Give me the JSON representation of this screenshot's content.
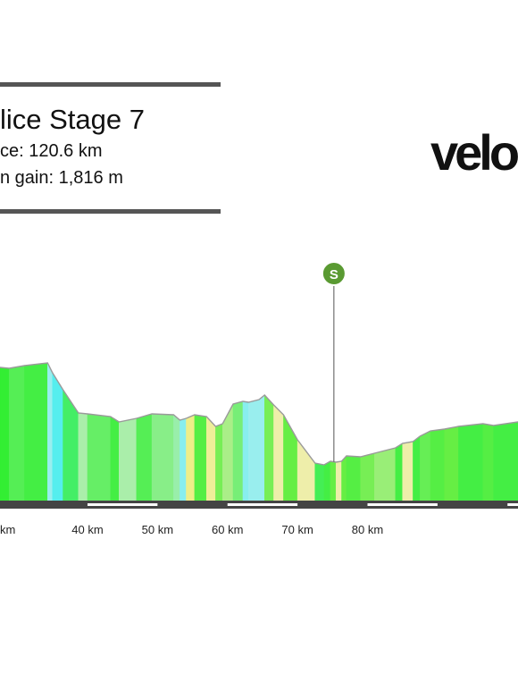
{
  "header": {
    "title": "lice Stage 7",
    "distance_text": "ce: 120.6 km",
    "gain_text": "n gain: 1,816 m"
  },
  "logo": {
    "text": "velo"
  },
  "chart_data": {
    "type": "area",
    "xlabel": "",
    "ylabel": "",
    "x_unit": "km",
    "xlim": [
      27.5,
      101.5
    ],
    "ylim": [
      0,
      160
    ],
    "x_ticks": [
      30,
      40,
      50,
      60,
      70,
      80
    ],
    "x_tick_labels": [
      "km",
      "40 km",
      "50 km",
      "60 km",
      "70 km",
      "80 km"
    ],
    "profile": [
      {
        "x": 27.5,
        "y": 149
      },
      {
        "x": 28.8,
        "y": 148
      },
      {
        "x": 31.0,
        "y": 151
      },
      {
        "x": 34.3,
        "y": 154
      },
      {
        "x": 35.0,
        "y": 143
      },
      {
        "x": 36.5,
        "y": 124
      },
      {
        "x": 38.7,
        "y": 98
      },
      {
        "x": 40.0,
        "y": 97
      },
      {
        "x": 43.3,
        "y": 94
      },
      {
        "x": 44.5,
        "y": 88
      },
      {
        "x": 47.0,
        "y": 92
      },
      {
        "x": 49.2,
        "y": 97
      },
      {
        "x": 52.3,
        "y": 96
      },
      {
        "x": 53.2,
        "y": 90
      },
      {
        "x": 54.1,
        "y": 92
      },
      {
        "x": 55.3,
        "y": 96
      },
      {
        "x": 57.0,
        "y": 94
      },
      {
        "x": 58.3,
        "y": 83
      },
      {
        "x": 59.3,
        "y": 86
      },
      {
        "x": 60.8,
        "y": 108
      },
      {
        "x": 62.2,
        "y": 111
      },
      {
        "x": 63.0,
        "y": 110
      },
      {
        "x": 64.5,
        "y": 113
      },
      {
        "x": 65.3,
        "y": 118
      },
      {
        "x": 66.6,
        "y": 107
      },
      {
        "x": 68.0,
        "y": 96
      },
      {
        "x": 70.0,
        "y": 68
      },
      {
        "x": 72.5,
        "y": 42
      },
      {
        "x": 73.8,
        "y": 40
      },
      {
        "x": 74.7,
        "y": 44
      },
      {
        "x": 75.5,
        "y": 43
      },
      {
        "x": 76.3,
        "y": 44
      },
      {
        "x": 77.0,
        "y": 50
      },
      {
        "x": 79.0,
        "y": 49
      },
      {
        "x": 81.0,
        "y": 53
      },
      {
        "x": 84.0,
        "y": 59
      },
      {
        "x": 85.0,
        "y": 64
      },
      {
        "x": 86.5,
        "y": 66
      },
      {
        "x": 87.5,
        "y": 72
      },
      {
        "x": 89.0,
        "y": 78
      },
      {
        "x": 91.0,
        "y": 80
      },
      {
        "x": 93.0,
        "y": 83
      },
      {
        "x": 96.5,
        "y": 86
      },
      {
        "x": 98.0,
        "y": 84
      },
      {
        "x": 101.5,
        "y": 88
      }
    ],
    "segment_colors": [
      "#33ee33",
      "#55ee55",
      "#44ee44",
      "#99eeee",
      "#55eeee",
      "#44ee66",
      "#aaeeaa",
      "#66ee66",
      "#44ee44",
      "#aaeeaa",
      "#55ee55",
      "#88ee88",
      "#99eeaa",
      "#88eeee",
      "#eeee88",
      "#55ee44",
      "#eeee99",
      "#77ee55",
      "#aaee88",
      "#77ee77",
      "#88eeee",
      "#99eeee",
      "#99eeee",
      "#77ee55",
      "#eeeeaa",
      "#66ee44",
      "#eeeeaa",
      "#44ee55",
      "#44ee44",
      "#66ee44",
      "#eeeeaa",
      "#66ee44",
      "#55ee44",
      "#77ee55",
      "#99ee77",
      "#44ee44",
      "#eeeeaa",
      "#44ee44",
      "#66ee55",
      "#55ee44",
      "#66ee44",
      "#44ee44",
      "#55ee44",
      "#44ee44"
    ],
    "markers": [
      {
        "x": 75.2,
        "label": "S",
        "type": "sprint",
        "color": "#5a9a32"
      }
    ]
  }
}
